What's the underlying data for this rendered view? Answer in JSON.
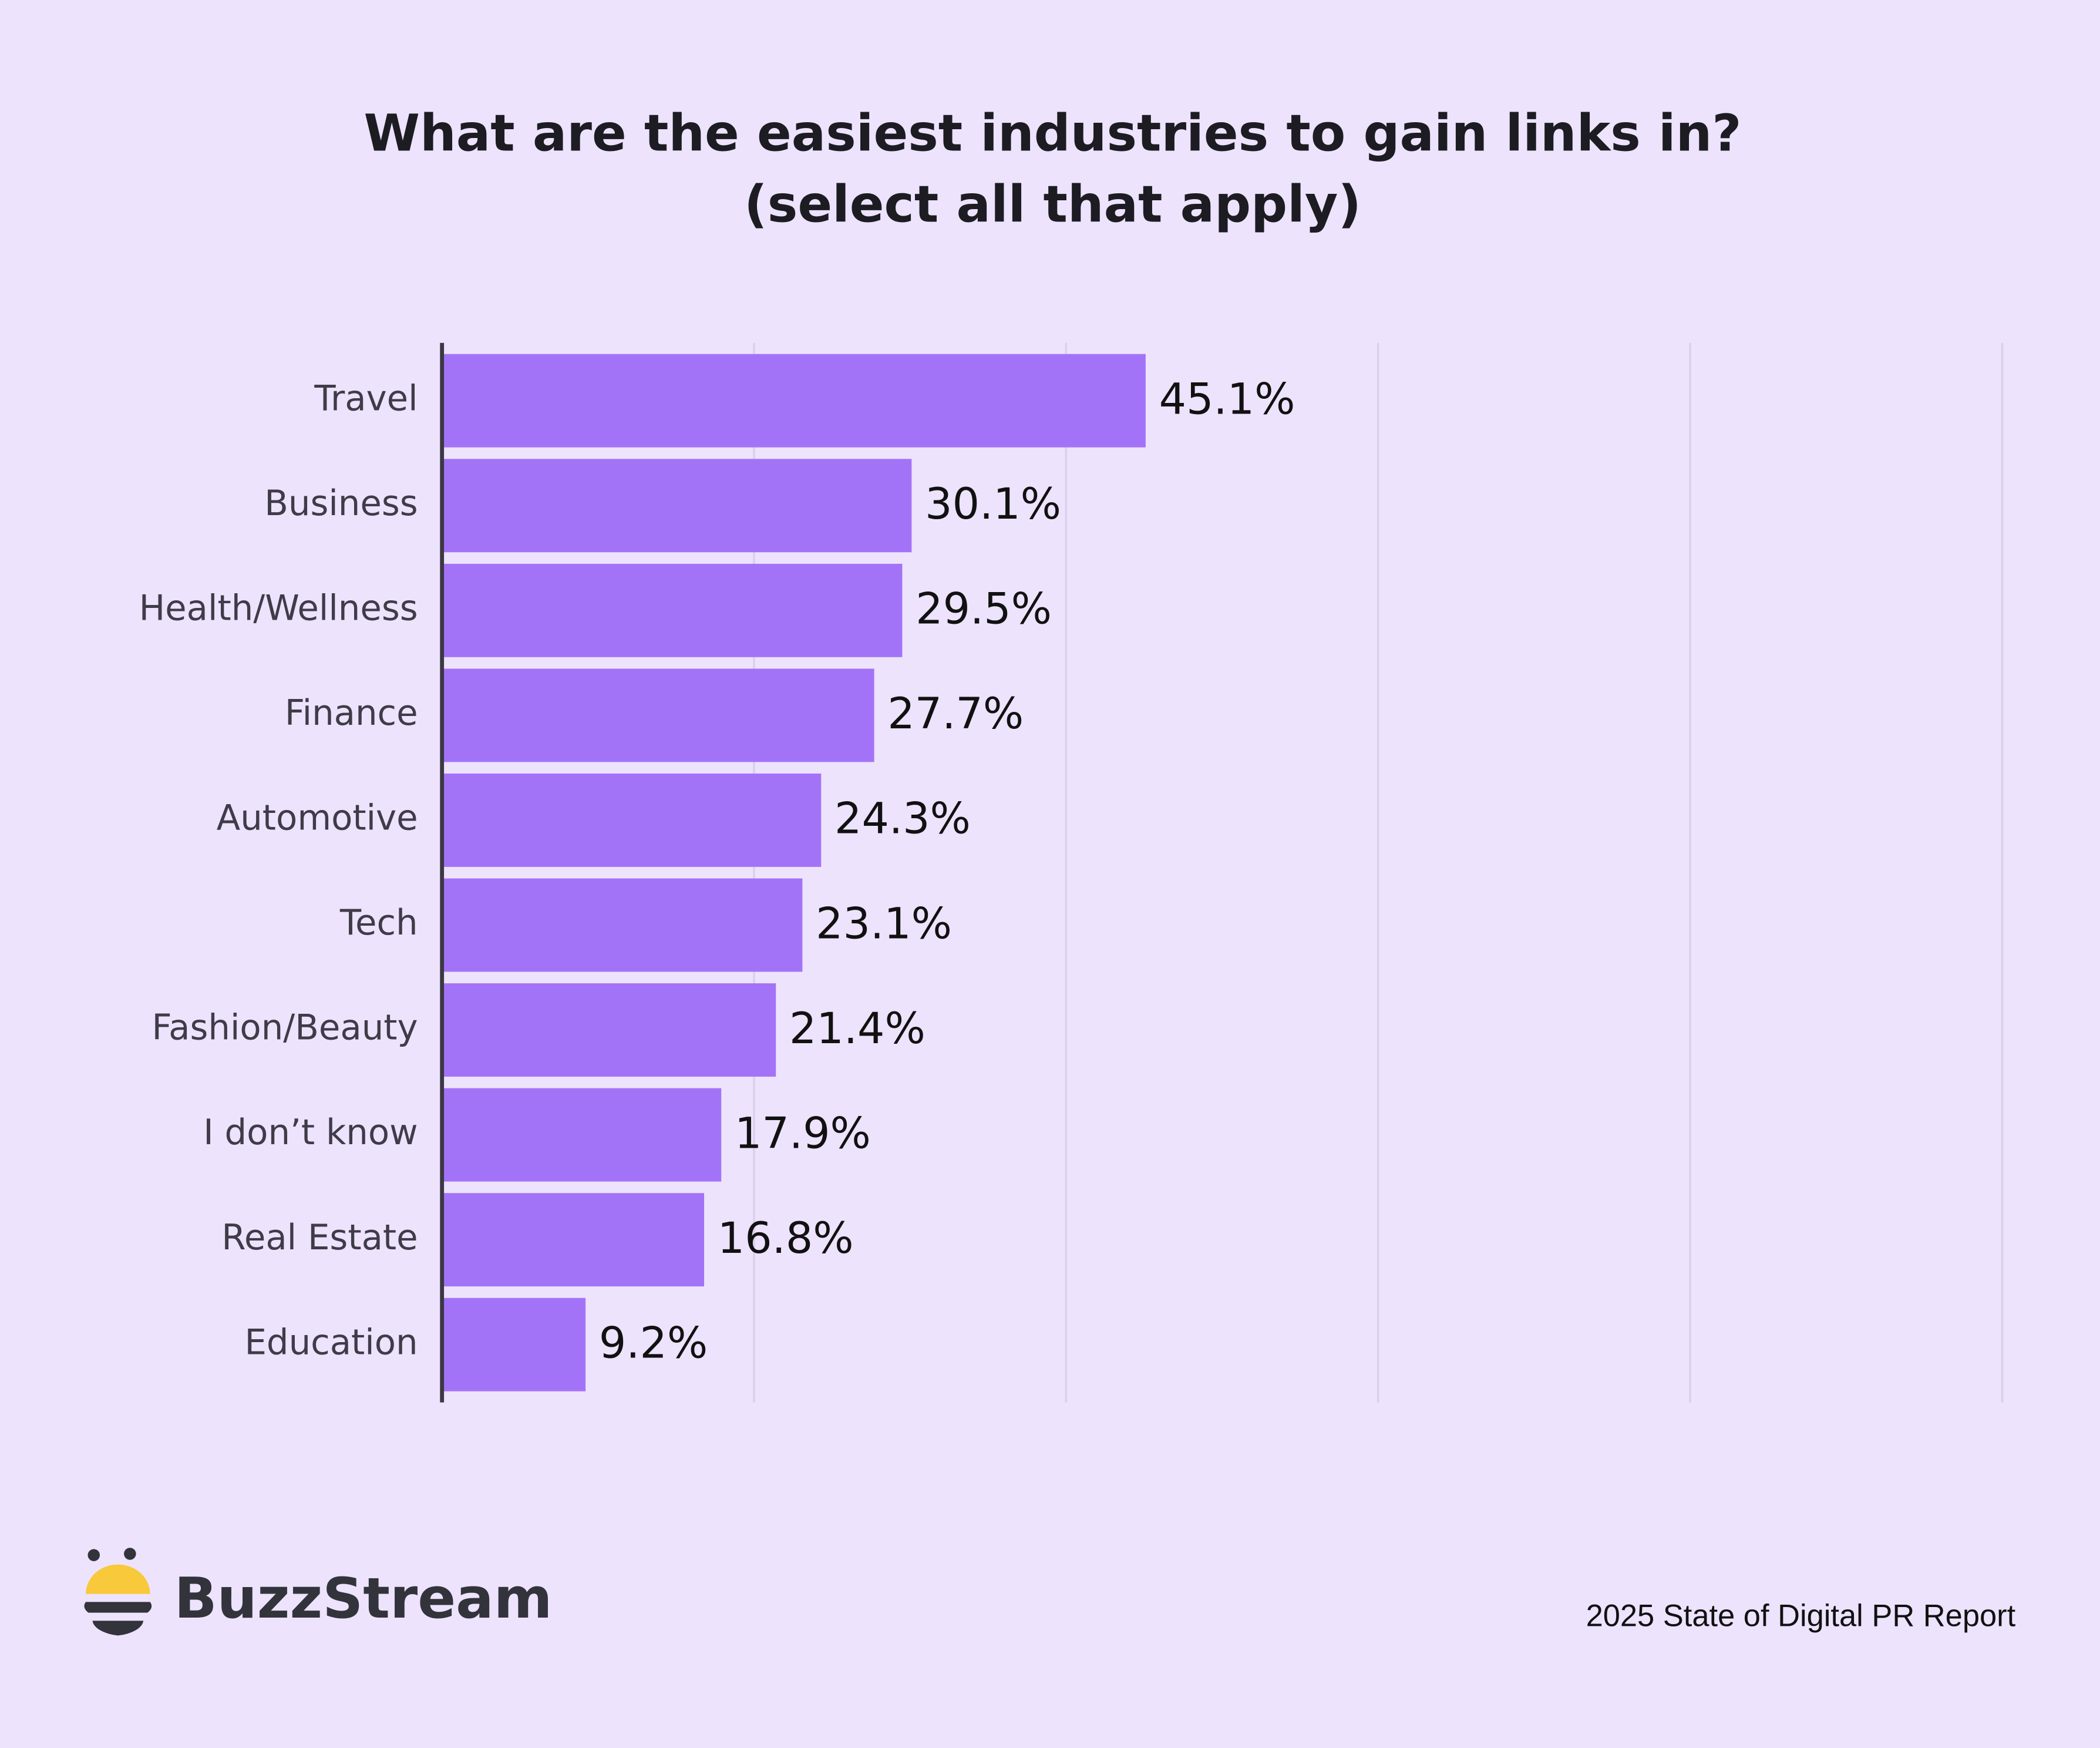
{
  "chart_data": {
    "type": "bar",
    "orientation": "horizontal",
    "title": "What are the easiest industries to gain links in?",
    "subtitle": "(select all that apply)",
    "categories": [
      "Travel",
      "Business",
      "Health/Wellness",
      "Finance",
      "Automotive",
      "Tech",
      "Fashion/Beauty",
      "I don’t know",
      "Real Estate",
      "Education"
    ],
    "values": [
      45.1,
      30.1,
      29.5,
      27.7,
      24.3,
      23.1,
      21.4,
      17.9,
      16.8,
      9.2
    ],
    "value_labels": [
      "45.1%",
      "30.1%",
      "29.5%",
      "27.7%",
      "24.3%",
      "23.1%",
      "21.4%",
      "17.9%",
      "16.8%",
      "9.2%"
    ],
    "color": "#a373f7",
    "xlim": [
      0,
      100
    ],
    "xticks": [
      0,
      20,
      40,
      60,
      80,
      100
    ],
    "grid": true
  },
  "logo": "BuzzStream",
  "source": "2025 State of Digital PR Report"
}
